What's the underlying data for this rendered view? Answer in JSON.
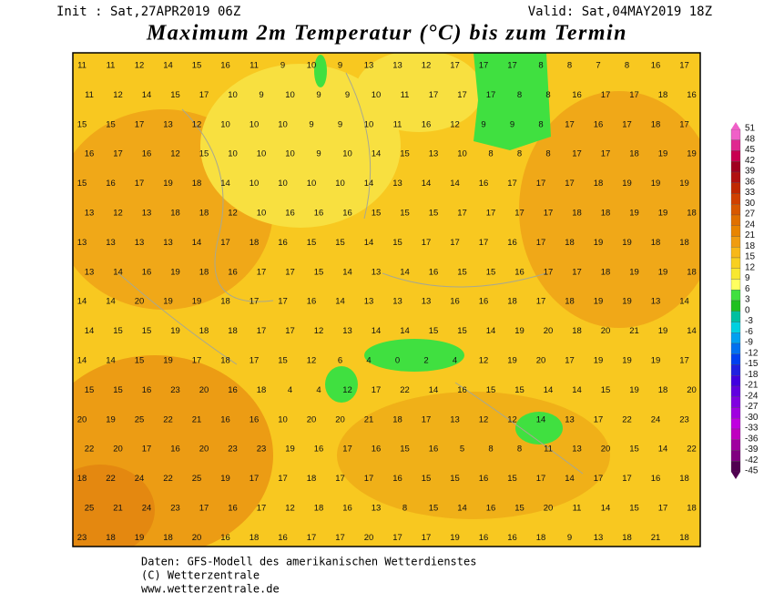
{
  "header": {
    "init": "Init : Sat,27APR2019 06Z",
    "valid": "Valid: Sat,04MAY2019 18Z",
    "title": "Maximum 2m Temperatur (°C) bis zum Termin"
  },
  "legend": {
    "levels": [
      51,
      48,
      45,
      42,
      39,
      36,
      33,
      30,
      27,
      24,
      21,
      18,
      15,
      12,
      9,
      6,
      3,
      0,
      -3,
      -6,
      -9,
      -12,
      -15,
      -18,
      -21,
      -24,
      -27,
      -30,
      -33,
      -36,
      -39,
      -42,
      -45
    ],
    "colors": [
      "#f060c8",
      "#e02890",
      "#c80050",
      "#a00020",
      "#b01010",
      "#c02800",
      "#d04000",
      "#d85800",
      "#e07000",
      "#e88400",
      "#f09c10",
      "#f8b818",
      "#f8d020",
      "#f8e830",
      "#ffff60",
      "#40e040",
      "#20c020",
      "#00c0a0",
      "#00d0e0",
      "#00a0f0",
      "#0070f0",
      "#0040f0",
      "#2020e0",
      "#4000e0",
      "#6000e0",
      "#8000e0",
      "#a000e0",
      "#c000e0",
      "#c000c0",
      "#a000a0",
      "#800080",
      "#500050"
    ]
  },
  "map": {
    "values": [
      [
        11,
        11,
        12,
        14,
        15,
        16,
        11,
        9,
        10,
        9,
        13,
        13,
        12,
        17,
        17,
        17,
        8,
        8,
        7,
        8,
        16,
        17
      ],
      [
        11,
        12,
        14,
        15,
        17,
        10,
        9,
        10,
        9,
        9,
        10,
        11,
        17,
        17,
        17,
        8,
        8,
        16,
        17,
        17,
        18,
        16
      ],
      [
        15,
        15,
        17,
        13,
        12,
        10,
        10,
        10,
        9,
        9,
        10,
        11,
        16,
        12,
        9,
        9,
        8,
        17,
        16,
        17,
        18,
        17
      ],
      [
        16,
        17,
        16,
        12,
        15,
        10,
        10,
        10,
        9,
        10,
        14,
        15,
        13,
        10,
        8,
        8,
        8,
        17,
        17,
        18,
        19,
        19
      ],
      [
        15,
        16,
        17,
        19,
        18,
        14,
        10,
        10,
        10,
        10,
        14,
        13,
        14,
        14,
        16,
        17,
        17,
        17,
        18,
        19,
        19,
        19
      ],
      [
        13,
        12,
        13,
        18,
        18,
        12,
        10,
        16,
        16,
        16,
        15,
        15,
        15,
        17,
        17,
        17,
        17,
        18,
        18,
        19,
        19,
        18
      ],
      [
        13,
        13,
        13,
        13,
        14,
        17,
        18,
        16,
        15,
        15,
        14,
        15,
        17,
        17,
        17,
        16,
        17,
        18,
        19,
        19,
        18,
        18
      ],
      [
        13,
        14,
        16,
        19,
        18,
        16,
        17,
        17,
        15,
        14,
        13,
        14,
        16,
        15,
        15,
        16,
        17,
        17,
        18,
        19,
        19,
        18
      ],
      [
        14,
        14,
        20,
        19,
        19,
        18,
        17,
        17,
        16,
        14,
        13,
        13,
        13,
        16,
        16,
        18,
        17,
        18,
        19,
        19,
        13,
        14
      ],
      [
        14,
        15,
        15,
        19,
        18,
        18,
        17,
        17,
        12,
        13,
        14,
        14,
        15,
        15,
        14,
        19,
        20,
        18,
        20,
        21,
        19,
        14
      ],
      [
        14,
        14,
        15,
        19,
        17,
        18,
        17,
        15,
        12,
        6,
        4,
        0,
        2,
        4,
        12,
        19,
        20,
        17,
        19,
        19,
        19,
        17
      ],
      [
        15,
        15,
        16,
        23,
        20,
        16,
        18,
        4,
        4,
        12,
        17,
        22,
        14,
        16,
        15,
        15,
        14,
        14,
        15,
        19,
        18,
        20
      ],
      [
        20,
        19,
        25,
        22,
        21,
        16,
        16,
        10,
        20,
        20,
        21,
        18,
        17,
        13,
        12,
        12,
        14,
        13,
        17,
        22,
        24,
        23
      ],
      [
        22,
        20,
        17,
        16,
        20,
        23,
        23,
        19,
        16,
        17,
        16,
        15,
        16,
        5,
        8,
        8,
        11,
        13,
        20,
        15,
        14,
        22
      ],
      [
        18,
        22,
        24,
        22,
        25,
        19,
        17,
        17,
        18,
        17,
        17,
        16,
        15,
        15,
        16,
        15,
        17,
        14,
        17,
        17,
        16,
        18
      ],
      [
        25,
        21,
        24,
        23,
        17,
        16,
        17,
        12,
        18,
        16,
        13,
        8,
        15,
        14,
        16,
        15,
        20,
        11,
        14,
        15,
        17,
        18
      ],
      [
        23,
        18,
        19,
        18,
        20,
        16,
        18,
        16,
        17,
        17,
        20,
        17,
        17,
        19,
        16,
        16,
        18,
        9,
        13,
        18,
        21,
        18
      ]
    ]
  },
  "footer": {
    "lines": [
      "Daten: GFS-Modell des amerikanischen Wetterdienstes",
      "(C) Wetterzentrale",
      "www.wetterzentrale.de"
    ]
  }
}
